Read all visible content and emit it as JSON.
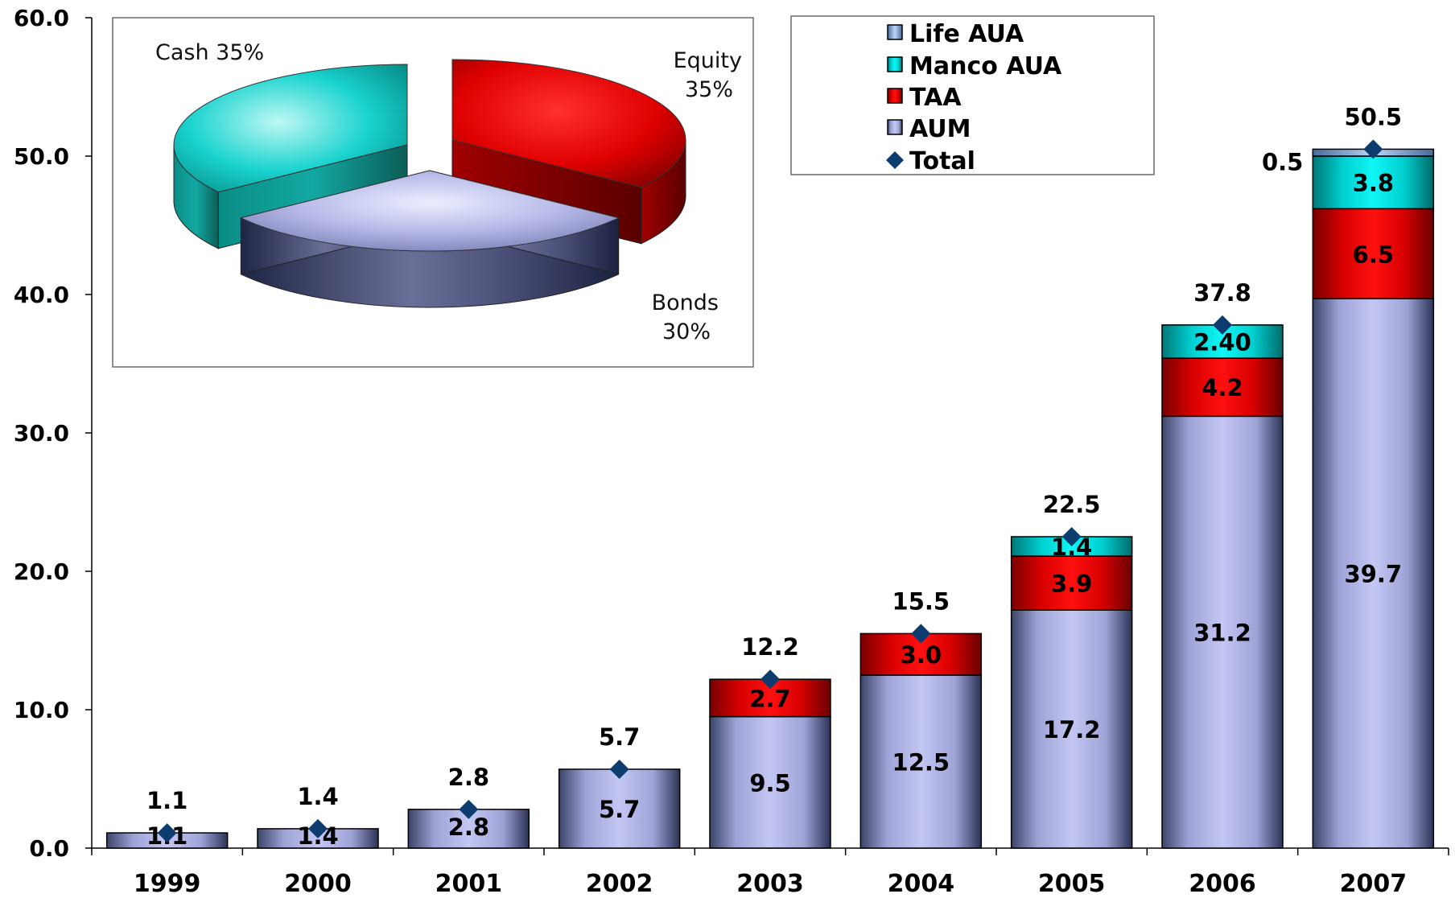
{
  "chart_data": [
    {
      "type": "bar",
      "stacked": true,
      "categories": [
        "1999",
        "2000",
        "2001",
        "2002",
        "2003",
        "2004",
        "2005",
        "2006",
        "2007"
      ],
      "ylim": [
        0,
        60
      ],
      "yticks": [
        "0.0",
        "10.0",
        "20.0",
        "30.0",
        "40.0",
        "50.0",
        "60.0"
      ],
      "series": [
        {
          "name": "AUM",
          "color": "#b8bbe8",
          "values": [
            1.1,
            1.4,
            2.8,
            5.7,
            9.5,
            12.5,
            17.2,
            31.2,
            39.7
          ],
          "labels": [
            "1.1",
            "1.4",
            "2.8",
            "5.7",
            "9.5",
            "12.5",
            "17.2",
            "31.2",
            "39.7"
          ]
        },
        {
          "name": "TAA",
          "color": "#e00000",
          "values": [
            0,
            0,
            0,
            0,
            2.7,
            3.0,
            3.9,
            4.2,
            6.5
          ],
          "labels": [
            "",
            "",
            "",
            "",
            "2.7",
            "3.0",
            "3.9",
            "4.2",
            "6.5"
          ]
        },
        {
          "name": "Manco AUA",
          "color": "#00d8d8",
          "values": [
            0,
            0,
            0,
            0,
            0,
            0,
            1.4,
            2.4,
            3.8
          ],
          "labels": [
            "",
            "",
            "",
            "",
            "",
            "",
            "1.4",
            "2.40",
            "3.8"
          ]
        },
        {
          "name": "Life AUA",
          "color": "#9fc0ee",
          "values": [
            0,
            0,
            0,
            0,
            0,
            0,
            0,
            0,
            0.5
          ],
          "labels": [
            "",
            "",
            "",
            "",
            "",
            "",
            "",
            "",
            "0.5"
          ]
        }
      ],
      "total": {
        "name": "Total",
        "color": "#0d3c6e",
        "values": [
          1.1,
          1.4,
          2.8,
          5.7,
          12.2,
          15.5,
          22.5,
          37.8,
          50.5
        ],
        "labels": [
          "1.1",
          "1.4",
          "2.8",
          "5.7",
          "12.2",
          "15.5",
          "22.5",
          "37.8",
          "50.5"
        ]
      },
      "legend": {
        "placement": "top-right",
        "entries": [
          "Life AUA",
          "Manco AUA",
          "TAA",
          "AUM",
          "Total"
        ]
      }
    },
    {
      "type": "pie",
      "style": "3d-exploded",
      "slices": [
        {
          "name": "Equity",
          "value": 35,
          "label_line1": "Equity",
          "label_line2": "35%",
          "color": "#e00000"
        },
        {
          "name": "Bonds",
          "value": 30,
          "label_line1": "Bonds",
          "label_line2": "30%",
          "color": "#b8bbe8"
        },
        {
          "name": "Cash",
          "value": 35,
          "label_line1": "Cash 35%",
          "label_line2": "",
          "color": "#00d8d8"
        }
      ]
    }
  ]
}
